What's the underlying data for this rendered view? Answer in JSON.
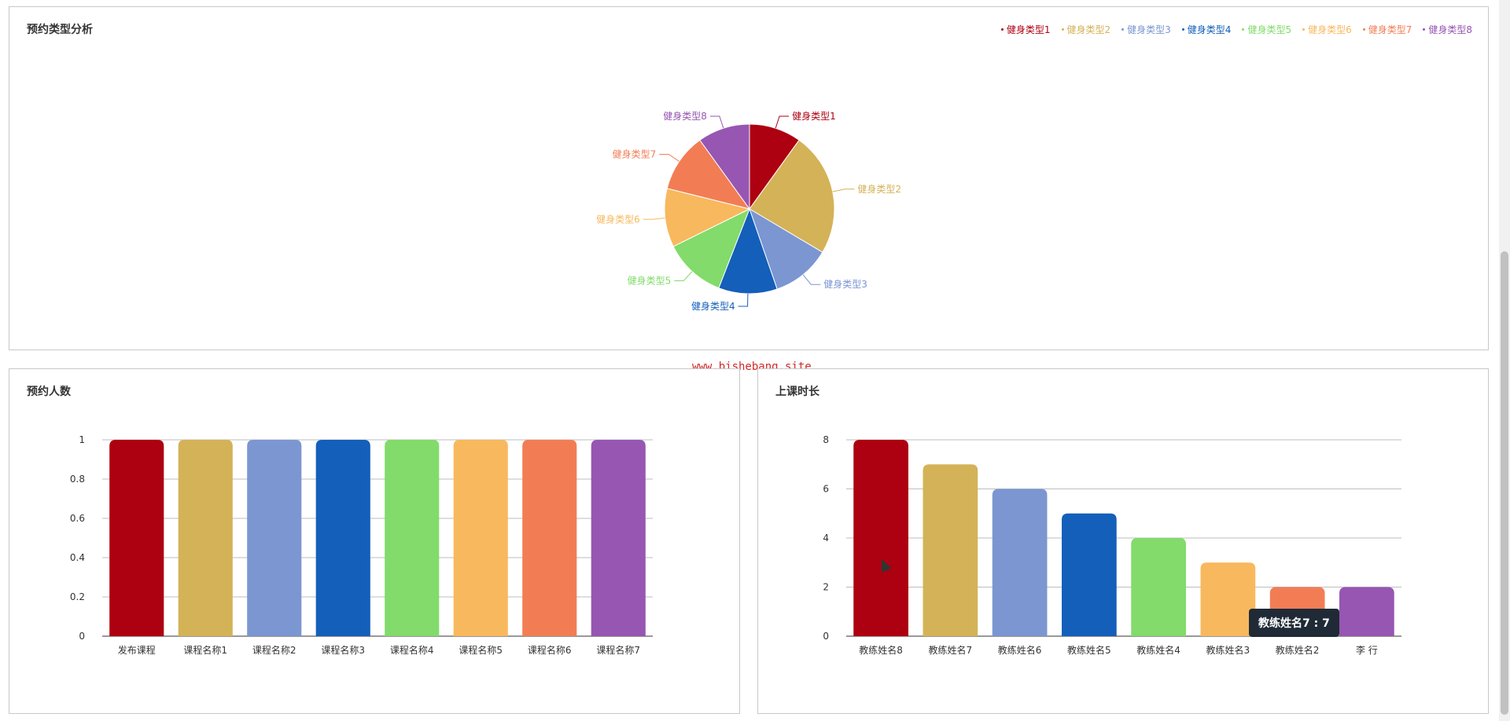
{
  "colors": [
    "#ad0010",
    "#d4b257",
    "#7b96d1",
    "#135fba",
    "#82db6a",
    "#f8b85d",
    "#f27d55",
    "#9656b2"
  ],
  "watermark": "www.bishebang.site",
  "tooltip": "教练姓名7 : 7",
  "chart_data": [
    {
      "type": "pie",
      "title": "预约类型分析",
      "legend_position": "top-right",
      "categories": [
        "健身类型1",
        "健身类型2",
        "健身类型3",
        "健身类型4",
        "健身类型5",
        "健身类型6",
        "健身类型7",
        "健身类型8"
      ],
      "values": [
        1.6,
        3.8,
        1.8,
        1.8,
        1.9,
        1.8,
        1.8,
        1.6
      ]
    },
    {
      "type": "bar",
      "title": "预约人数",
      "categories": [
        "发布课程",
        "课程名称1",
        "课程名称2",
        "课程名称3",
        "课程名称4",
        "课程名称5",
        "课程名称6",
        "课程名称7"
      ],
      "values": [
        1,
        1,
        1,
        1,
        1,
        1,
        1,
        1
      ],
      "ylim": [
        0,
        1
      ],
      "yticks": [
        "0",
        "0.2",
        "0.4",
        "0.6",
        "0.8",
        "1"
      ]
    },
    {
      "type": "bar",
      "title": "上课时长",
      "categories": [
        "教练姓名8",
        "教练姓名7",
        "教练姓名6",
        "教练姓名5",
        "教练姓名4",
        "教练姓名3",
        "教练姓名2",
        "李 行"
      ],
      "values": [
        8,
        7,
        6,
        5,
        4,
        3,
        2,
        2
      ],
      "ylim": [
        0,
        8
      ],
      "yticks": [
        "0",
        "2",
        "4",
        "6",
        "8"
      ]
    }
  ]
}
